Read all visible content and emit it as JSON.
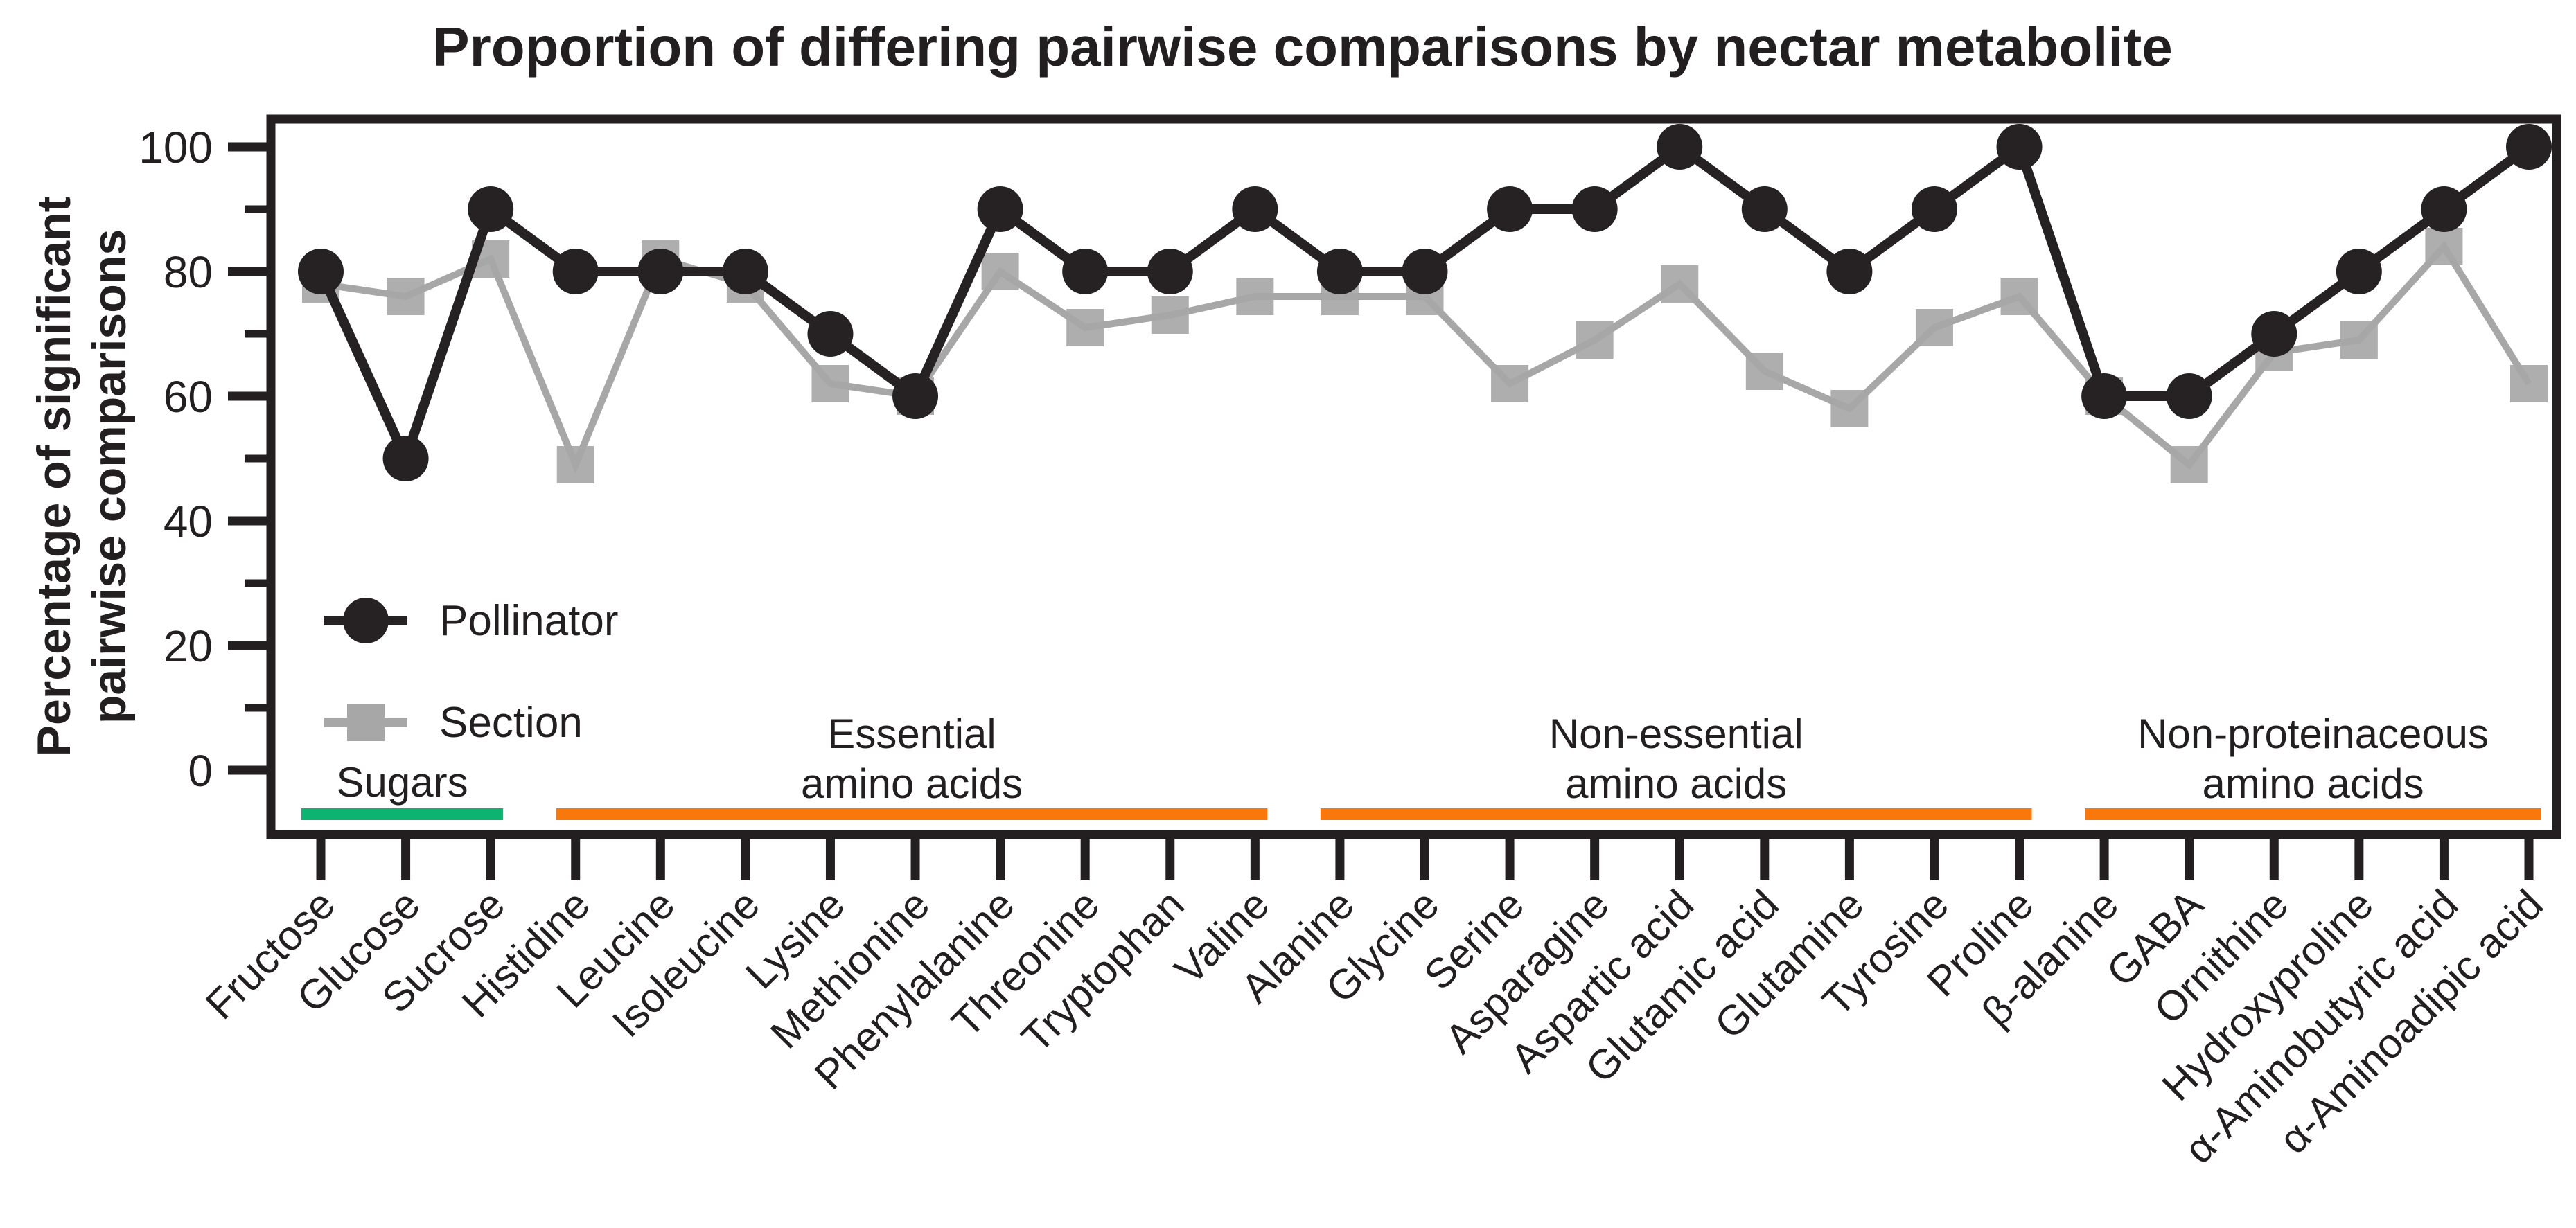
{
  "title": "Proportion of differing pairwise comparisons by nectar metabolite",
  "y_axis": {
    "label_line1": "Percentage of significant",
    "label_line2": "pairwise comparisons",
    "major_ticks": [
      0,
      20,
      40,
      60,
      80,
      100
    ],
    "minor_ticks": [
      10,
      30,
      50,
      70,
      90
    ]
  },
  "legend": [
    {
      "label": "Pollinator",
      "marker": "circle",
      "color": "#262223"
    },
    {
      "label": "Section",
      "marker": "square",
      "color": "#a7a7a7"
    }
  ],
  "colors": {
    "pollinator": "#262223",
    "section": "#a7a7a7",
    "axis": "#231f20",
    "sugars_bar": "#0cb371",
    "amino_bar": "#f8780e"
  },
  "groups": [
    {
      "lines": [
        "Sugars"
      ],
      "first": 0,
      "last": 2,
      "color_key": "sugars_bar"
    },
    {
      "lines": [
        "Essential",
        "amino acids"
      ],
      "first": 3,
      "last": 11,
      "color_key": "amino_bar"
    },
    {
      "lines": [
        "Non-essential",
        "amino acids"
      ],
      "first": 12,
      "last": 20,
      "color_key": "amino_bar"
    },
    {
      "lines": [
        "Non-proteinaceous",
        "amino acids"
      ],
      "first": 21,
      "last": 26,
      "color_key": "amino_bar"
    }
  ],
  "chart_data": {
    "type": "line",
    "title": "Proportion of differing pairwise comparisons by nectar metabolite",
    "xlabel": "",
    "ylabel": "Percentage of significant pairwise comparisons",
    "ylim": [
      0,
      100
    ],
    "grid": false,
    "x_tick_rotation": 45,
    "legend_position": "inside-left",
    "categories": [
      "Fructose",
      "Glucose",
      "Sucrose",
      "Histidine",
      "Leucine",
      "Isoleucine",
      "Lysine",
      "Methionine",
      "Phenylalanine",
      "Threonine",
      "Tryptophan",
      "Valine",
      "Alanine",
      "Glycine",
      "Serine",
      "Asparagine",
      "Aspartic acid",
      "Glutamic acid",
      "Glutamine",
      "Tyrosine",
      "Proline",
      "β-alanine",
      "GABA",
      "Ornithine",
      "Hydroxyproline",
      "α-Aminobutyric acid",
      "α-Aminoadipic acid"
    ],
    "series": [
      {
        "name": "Pollinator",
        "values": [
          80,
          50,
          90,
          80,
          80,
          80,
          70,
          60,
          90,
          80,
          80,
          90,
          80,
          80,
          90,
          90,
          100,
          90,
          80,
          90,
          100,
          60,
          60,
          70,
          80,
          90,
          100
        ]
      },
      {
        "name": "Section",
        "values": [
          78,
          76,
          82,
          49,
          82,
          78,
          62,
          60,
          80,
          71,
          73,
          76,
          76,
          76,
          62,
          69,
          78,
          64,
          58,
          71,
          76,
          60,
          49,
          67,
          69,
          84,
          62
        ]
      }
    ]
  }
}
